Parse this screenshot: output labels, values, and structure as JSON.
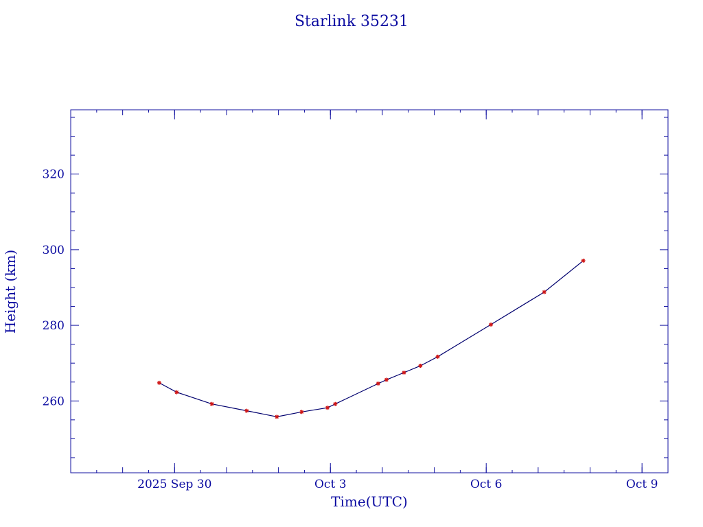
{
  "chart_data": {
    "type": "line",
    "title": "Starlink 35231",
    "xlabel": "Time(UTC)",
    "ylabel": "Height (km)",
    "x_tick_labels": [
      "2025 Sep 30",
      "Oct  3",
      "Oct  6",
      "Oct  9"
    ],
    "x_tick_dates": [
      "2025-09-30",
      "2025-10-03",
      "2025-10-06",
      "2025-10-09"
    ],
    "xlim": [
      "2025-09-28T00:00",
      "2025-10-09T12:00"
    ],
    "ylim": [
      241,
      337
    ],
    "y_tick_labels": [
      "260",
      "280",
      "300",
      "320"
    ],
    "y_ticks": [
      260,
      280,
      300,
      320
    ],
    "grid": false,
    "line_color": "#00006e",
    "marker_color": "#d01818",
    "text_color": "#0a0aa0",
    "series": [
      {
        "x": [
          "2025-09-29T16:54",
          "2025-09-30T00:59",
          "2025-09-30T17:14",
          "2025-10-01T09:19",
          "2025-10-01T23:15",
          "2025-10-02T10:43",
          "2025-10-02T22:39",
          "2025-10-03T02:15",
          "2025-10-03T22:04",
          "2025-10-04T01:55",
          "2025-10-04T10:00",
          "2025-10-04T17:35",
          "2025-10-05T01:36",
          "2025-10-06T02:10",
          "2025-10-07T02:50",
          "2025-10-07T20:51"
        ],
        "y": [
          264.8,
          262.3,
          259.2,
          257.4,
          255.8,
          257.1,
          258.2,
          259.2,
          264.6,
          265.6,
          267.5,
          269.3,
          271.7,
          280.2,
          288.8,
          297.1
        ]
      }
    ]
  }
}
